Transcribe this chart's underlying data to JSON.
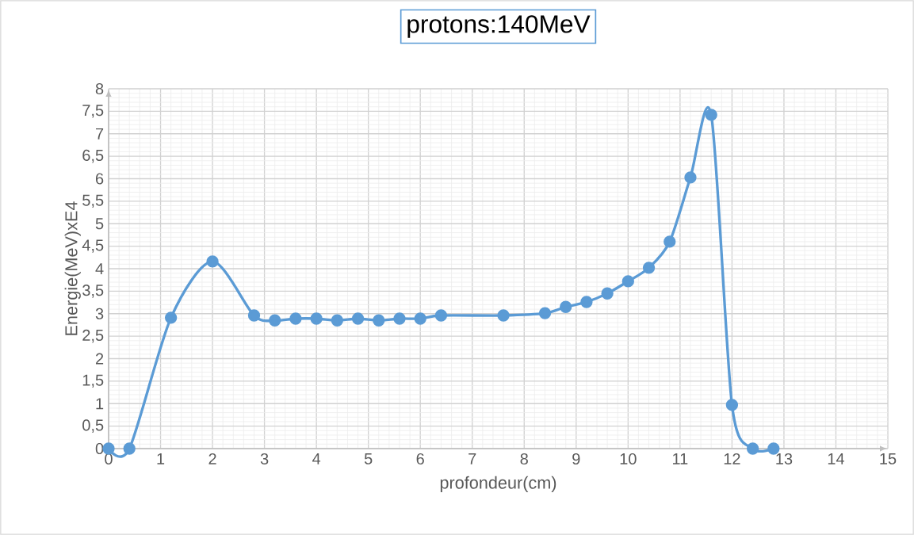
{
  "chart_data": {
    "type": "line",
    "title": "protons:140MeV",
    "xlabel": "profondeur(cm)",
    "ylabel": "Energie(MeV)xE4",
    "x": [
      0,
      0.4,
      1.2,
      2.0,
      2.8,
      3.2,
      3.6,
      4.0,
      4.4,
      4.8,
      5.2,
      5.6,
      6.0,
      6.4,
      7.6,
      8.4,
      8.8,
      9.2,
      9.6,
      10.0,
      10.4,
      10.8,
      11.2,
      11.6,
      12.0,
      12.4,
      12.8
    ],
    "values": [
      0,
      0,
      2.91,
      4.16,
      2.96,
      2.85,
      2.89,
      2.89,
      2.85,
      2.89,
      2.85,
      2.89,
      2.89,
      2.96,
      2.96,
      3.01,
      3.15,
      3.26,
      3.45,
      3.72,
      4.02,
      4.6,
      6.03,
      7.42,
      0.97,
      0,
      0
    ],
    "color": "#5b9bd5",
    "marker": "circle",
    "line_style": "solid",
    "grid": true,
    "xlim": [
      0,
      15
    ],
    "xticks": [
      0,
      1,
      2,
      3,
      4,
      5,
      6,
      7,
      8,
      9,
      10,
      11,
      12,
      13,
      14,
      15
    ],
    "ylim": [
      0,
      8
    ],
    "yticks": [
      0,
      {
        "value": 0.5,
        "label": "0,5"
      },
      1,
      {
        "value": 1.5,
        "label": "1,5"
      },
      2,
      {
        "value": 2.5,
        "label": "2,5"
      },
      3,
      {
        "value": 3.5,
        "label": "3,5"
      },
      4,
      {
        "value": 4.5,
        "label": "4,5"
      },
      5,
      {
        "value": 5.5,
        "label": "5,5"
      },
      6,
      {
        "value": 6.5,
        "label": "6,5"
      },
      7,
      {
        "value": 7.5,
        "label": "7,5"
      },
      8
    ]
  }
}
